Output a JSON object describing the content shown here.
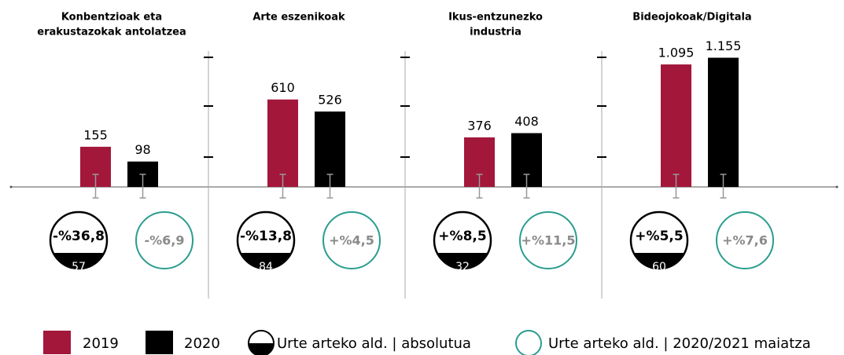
{
  "legend": {
    "series": [
      {
        "name": "2019",
        "color": "#a3173a"
      },
      {
        "name": "2020",
        "color": "#000000"
      }
    ],
    "absolute": "Urte arteko ald. | absolutua",
    "relative": "Urte arteko ald. | 2020/2021 maiatza"
  },
  "chart_data": [
    {
      "type": "bar",
      "title": [
        "Konbentzioak eta",
        "erakustazokak antolatzea"
      ],
      "values": [
        155,
        98
      ],
      "ylim": [
        0,
        570
      ],
      "change": {
        "value": -36.8,
        "label": "-%36,8"
      },
      "difference": 57,
      "change_2021": {
        "value": -6.9,
        "label": "-%6,9"
      }
    },
    {
      "type": "bar",
      "title": [
        "Arte eszenikoak"
      ],
      "values": [
        610,
        526
      ],
      "ylim": [
        0,
        1030
      ],
      "change": {
        "value": -13.8,
        "label": "-%13,8"
      },
      "difference": 84,
      "change_2021": {
        "value": 4.5,
        "label": "+%4,5"
      }
    },
    {
      "type": "bar",
      "title": [
        "Ikus-entzunezko",
        "industria"
      ],
      "values": [
        376,
        408
      ],
      "ylim": [
        0,
        1120
      ],
      "change": {
        "value": 8.5,
        "label": "+%8,5"
      },
      "difference": 32,
      "change_2021": {
        "value": 11.5,
        "label": "+%11,5"
      }
    },
    {
      "type": "bar",
      "title": [
        "Bideojokoak/Digitala"
      ],
      "values": [
        1095,
        1155
      ],
      "value_labels": [
        "1.095",
        "1.155"
      ],
      "ylim": [
        0,
        1320
      ],
      "change": {
        "value": 5.5,
        "label": "+%5,5"
      },
      "difference": 60,
      "change_2021": {
        "value": 7.6,
        "label": "+%7,6"
      }
    }
  ]
}
